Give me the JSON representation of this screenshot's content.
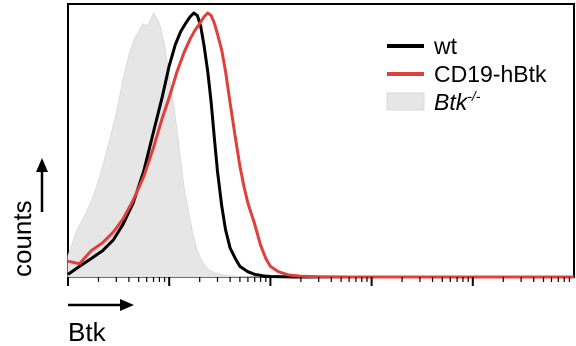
{
  "chart_data": {
    "type": "area",
    "title": "",
    "xlabel": "Btk",
    "ylabel": "counts",
    "x_scale": "log",
    "xlim": [
      1,
      100000
    ],
    "ylim": [
      0,
      1
    ],
    "grid": false,
    "legend_position": "top-right",
    "series": [
      {
        "name": "wt",
        "color": "#000000",
        "style": "line",
        "x": [
          1,
          1.3,
          1.7,
          2.2,
          2.8,
          3.5,
          4.4,
          5.6,
          7,
          8.5,
          10,
          11.5,
          13,
          14.5,
          16,
          17.5,
          19,
          20.5,
          22,
          24,
          26,
          28,
          30,
          33,
          36,
          40,
          45,
          50,
          60,
          70,
          85,
          100,
          130,
          170,
          250,
          1000,
          100000
        ],
        "values": [
          0.01,
          0.04,
          0.07,
          0.1,
          0.14,
          0.2,
          0.28,
          0.4,
          0.55,
          0.68,
          0.8,
          0.88,
          0.93,
          0.96,
          0.985,
          1.0,
          0.99,
          0.95,
          0.88,
          0.78,
          0.66,
          0.52,
          0.4,
          0.27,
          0.18,
          0.11,
          0.07,
          0.04,
          0.02,
          0.01,
          0.004,
          0.002,
          0.001,
          0,
          0,
          0,
          0
        ]
      },
      {
        "name": "CD19-hBtk",
        "color": "#e0403c",
        "style": "line",
        "x": [
          1,
          1.3,
          1.7,
          2.2,
          2.8,
          3.5,
          4.4,
          5.6,
          7,
          8.5,
          10,
          12,
          14,
          16,
          18,
          20,
          22,
          24,
          26,
          28,
          30,
          33,
          36,
          40,
          45,
          50,
          55,
          60,
          70,
          80,
          90,
          100,
          120,
          150,
          200,
          300,
          600,
          1000,
          100000
        ],
        "values": [
          0.06,
          0.05,
          0.1,
          0.13,
          0.17,
          0.22,
          0.29,
          0.38,
          0.49,
          0.6,
          0.68,
          0.78,
          0.85,
          0.9,
          0.935,
          0.96,
          0.985,
          1.0,
          0.99,
          0.96,
          0.92,
          0.86,
          0.78,
          0.66,
          0.53,
          0.42,
          0.34,
          0.28,
          0.2,
          0.12,
          0.07,
          0.04,
          0.02,
          0.008,
          0.003,
          0.001,
          0,
          0,
          0
        ]
      },
      {
        "name": "Btk-/-",
        "color": "#e6e6e6",
        "style": "filled",
        "x": [
          1,
          1.2,
          1.5,
          1.8,
          2.1,
          2.5,
          3,
          3.5,
          4,
          4.5,
          5,
          5.5,
          6,
          6.5,
          7,
          7.5,
          8,
          8.5,
          9,
          9.5,
          10,
          11,
          12,
          13,
          14,
          15.5,
          17,
          19,
          21,
          24,
          28,
          33,
          40,
          50,
          70,
          100,
          200,
          100000
        ],
        "values": [
          0.08,
          0.17,
          0.24,
          0.31,
          0.39,
          0.5,
          0.62,
          0.75,
          0.84,
          0.9,
          0.93,
          0.96,
          0.95,
          0.97,
          1.0,
          0.98,
          0.96,
          0.92,
          0.88,
          0.82,
          0.76,
          0.66,
          0.55,
          0.44,
          0.34,
          0.25,
          0.17,
          0.1,
          0.06,
          0.03,
          0.015,
          0.008,
          0.004,
          0.002,
          0.001,
          0,
          0,
          0
        ]
      }
    ]
  }
}
